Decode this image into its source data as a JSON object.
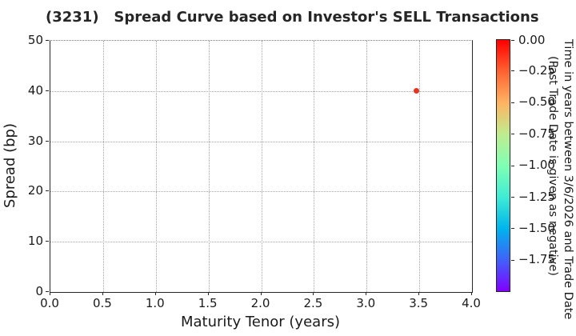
{
  "chart_data": {
    "type": "scatter",
    "title": "(3231)   Spread Curve based on Investor's SELL Transactions",
    "xlabel": "Maturity Tenor (years)",
    "ylabel": "Spread (bp)",
    "xlim": [
      0.0,
      4.0
    ],
    "ylim": [
      0,
      50
    ],
    "grid": true,
    "grid_style": "dotted",
    "xticks": {
      "values": [
        0.0,
        0.5,
        1.0,
        1.5,
        2.0,
        2.5,
        3.0,
        3.5,
        4.0
      ],
      "labels": [
        "0.0",
        "0.5",
        "1.0",
        "1.5",
        "2.0",
        "2.5",
        "3.0",
        "3.5",
        "4.0"
      ]
    },
    "yticks": {
      "values": [
        0,
        10,
        20,
        30,
        40,
        50
      ],
      "labels": [
        "0",
        "10",
        "20",
        "30",
        "40",
        "50"
      ]
    },
    "points": [
      {
        "x": 3.47,
        "y": 40,
        "color_value": 0.0,
        "color": "#e8341f"
      }
    ],
    "colorbar": {
      "label_line1": "Time in years between 3/6/2026 and Trade Date",
      "label_line2": "(Past Trade Date is given as negative)",
      "vmin": -2.0,
      "vmax": 0.0,
      "colormap": "rainbow",
      "tick_values": [
        0.0,
        -0.25,
        -0.5,
        -0.75,
        -1.0,
        -1.25,
        -1.5,
        -1.75
      ],
      "tick_labels": [
        "0.00",
        "−0.25",
        "−0.50",
        "−0.75",
        "−1.00",
        "−1.25",
        "−1.50",
        "−1.75"
      ],
      "gradient_stops_bottom_to_top": [
        "#8000ff",
        "#4062fa",
        "#00b4ec",
        "#40ecd4",
        "#80ffb4",
        "#bfec8f",
        "#ffb362",
        "#ff6232",
        "#ff0000"
      ]
    },
    "accent_colors": {
      "spine": "#262626",
      "gridline": "#a8a8a8",
      "text": "#1a1a1a"
    }
  }
}
